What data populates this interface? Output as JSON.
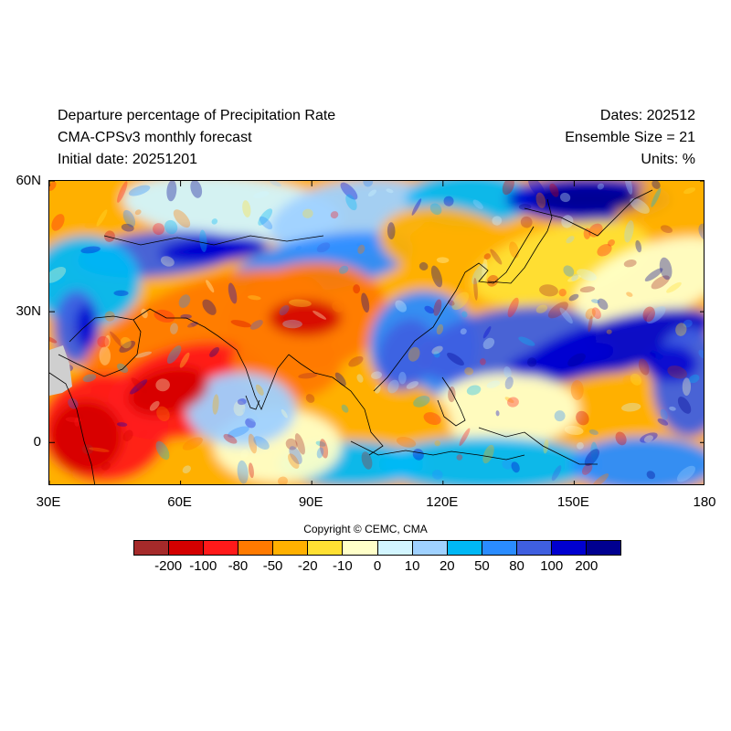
{
  "header": {
    "title": "Departure percentage of Precipitation Rate",
    "subtitle": "CMA-CPSv3 monthly forecast",
    "initial_date": "Initial date: 20251201",
    "dates": "Dates: 202512",
    "ensemble": "Ensemble Size = 21",
    "units": "Units: %"
  },
  "map": {
    "lon_labels": [
      "30E",
      "60E",
      "90E",
      "120E",
      "150E",
      "180"
    ],
    "lat_labels": [
      "60N",
      "30N",
      "0"
    ],
    "lon_range": [
      30,
      180
    ],
    "lat_range": [
      -10,
      60
    ]
  },
  "copyright": "Copyright © CEMC, CMA",
  "colorbar": {
    "colors": [
      "#a52a2a",
      "#d40000",
      "#ff1a1a",
      "#ff7a00",
      "#ffb000",
      "#ffe033",
      "#ffffc8",
      "#d2f5ff",
      "#9fd1ff",
      "#00b8f5",
      "#2a8cff",
      "#3f5fe0",
      "#0000d0",
      "#000090"
    ],
    "labels": [
      "-200",
      "-100",
      "-80",
      "-50",
      "-20",
      "-10",
      "0",
      "10",
      "20",
      "50",
      "80",
      "100",
      "200"
    ]
  }
}
